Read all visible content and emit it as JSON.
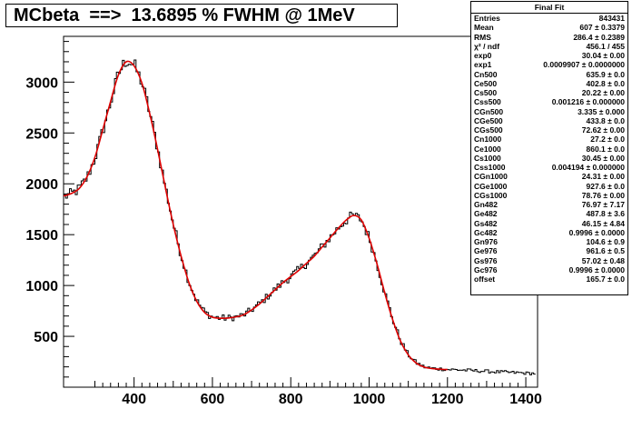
{
  "title": "MCbeta  ==>  13.6895 % FWHM @ 1MeV",
  "stats": {
    "title": "Final Fit",
    "rows": [
      {
        "name": "Entries",
        "value": "843431"
      },
      {
        "name": "Mean",
        "value": "607 ± 0.3379"
      },
      {
        "name": "RMS",
        "value": "286.4 ± 0.2389"
      },
      {
        "name": "χ² / ndf",
        "value": "456.1 / 455"
      },
      {
        "name": "exp0",
        "value": "30.04 ± 0.00"
      },
      {
        "name": "exp1",
        "value": "0.0009907 ± 0.0000000"
      },
      {
        "name": "Cn500",
        "value": "635.9 ± 0.0"
      },
      {
        "name": "Ce500",
        "value": "402.8 ± 0.0"
      },
      {
        "name": "Cs500",
        "value": "20.22 ± 0.00"
      },
      {
        "name": "Css500",
        "value": "0.001216 ± 0.000000"
      },
      {
        "name": "CGn500",
        "value": "3.335 ± 0.000"
      },
      {
        "name": "CGe500",
        "value": "433.8 ± 0.0"
      },
      {
        "name": "CGs500",
        "value": "72.62 ± 0.00"
      },
      {
        "name": "Cn1000",
        "value": "27.2 ± 0.0"
      },
      {
        "name": "Ce1000",
        "value": "860.1 ± 0.0"
      },
      {
        "name": "Cs1000",
        "value": "30.45 ± 0.00"
      },
      {
        "name": "Css1000",
        "value": "0.004194 ± 0.000000"
      },
      {
        "name": "CGn1000",
        "value": "24.31 ± 0.00"
      },
      {
        "name": "CGe1000",
        "value": "927.6 ± 0.0"
      },
      {
        "name": "CGs1000",
        "value": "78.76 ± 0.00"
      },
      {
        "name": "Gn482",
        "value": "76.97 ± 7.17"
      },
      {
        "name": "Ge482",
        "value": "487.8 ± 3.6"
      },
      {
        "name": "Gs482",
        "value": "46.15 ± 4.84"
      },
      {
        "name": "Gc482",
        "value": "0.9996 ± 0.0000"
      },
      {
        "name": "Gn976",
        "value": "104.6 ± 0.9"
      },
      {
        "name": "Ge976",
        "value": "961.6 ± 0.5"
      },
      {
        "name": "Gs976",
        "value": "57.02 ± 0.48"
      },
      {
        "name": "Gc976",
        "value": "0.9996 ± 0.0000"
      },
      {
        "name": "offset",
        "value": "165.7 ± 0.0"
      }
    ]
  },
  "chart_data": {
    "type": "line",
    "xlim": [
      220,
      1430
    ],
    "ylim": [
      0,
      3450
    ],
    "x_ticks": [
      400,
      600,
      800,
      1000,
      1200,
      1400
    ],
    "y_ticks": [
      500,
      1000,
      1500,
      2000,
      2500,
      3000
    ],
    "grid": false,
    "colors": {
      "histogram": "#000000",
      "fit": "#dd0000"
    },
    "series": [
      {
        "kind": "histogram",
        "x": [
          220,
          240,
          260,
          280,
          300,
          320,
          340,
          360,
          380,
          400,
          420,
          440,
          460,
          480,
          500,
          520,
          540,
          560,
          580,
          600,
          620,
          640,
          660,
          680,
          700,
          720,
          740,
          760,
          780,
          800,
          820,
          840,
          860,
          880,
          900,
          920,
          940,
          960,
          980,
          1000,
          1020,
          1040,
          1060,
          1080,
          1100,
          1120,
          1140,
          1160,
          1180,
          1200,
          1220,
          1240,
          1260,
          1280,
          1300,
          1320,
          1340,
          1360,
          1380,
          1400,
          1420
        ],
        "y": [
          1870,
          1900,
          1950,
          2060,
          2250,
          2520,
          2800,
          3080,
          3220,
          3170,
          3000,
          2700,
          2350,
          1970,
          1610,
          1300,
          1040,
          850,
          740,
          690,
          680,
          680,
          690,
          710,
          760,
          820,
          890,
          960,
          1030,
          1090,
          1150,
          1220,
          1290,
          1380,
          1470,
          1560,
          1640,
          1690,
          1650,
          1470,
          1220,
          930,
          670,
          460,
          320,
          240,
          200,
          185,
          180,
          175,
          172,
          168,
          164,
          160,
          156,
          152,
          148,
          145,
          142,
          138,
          135
        ]
      },
      {
        "kind": "fit",
        "x": [
          220,
          240,
          260,
          280,
          300,
          320,
          340,
          360,
          380,
          400,
          420,
          440,
          460,
          480,
          500,
          520,
          540,
          560,
          580,
          600,
          620,
          640,
          660,
          680,
          700,
          720,
          740,
          760,
          780,
          800,
          820,
          840,
          860,
          880,
          900,
          920,
          940,
          960,
          980,
          1000,
          1020,
          1040,
          1060,
          1080,
          1100,
          1120,
          1140,
          1160,
          1180,
          1200
        ],
        "y": [
          1880,
          1905,
          1955,
          2070,
          2260,
          2530,
          2810,
          3070,
          3200,
          3160,
          2990,
          2690,
          2340,
          1960,
          1600,
          1290,
          1030,
          845,
          735,
          688,
          678,
          680,
          692,
          712,
          760,
          818,
          888,
          958,
          1028,
          1088,
          1148,
          1218,
          1288,
          1378,
          1468,
          1558,
          1638,
          1688,
          1645,
          1465,
          1215,
          925,
          665,
          455,
          318,
          238,
          198,
          183,
          178,
          173
        ]
      }
    ]
  }
}
